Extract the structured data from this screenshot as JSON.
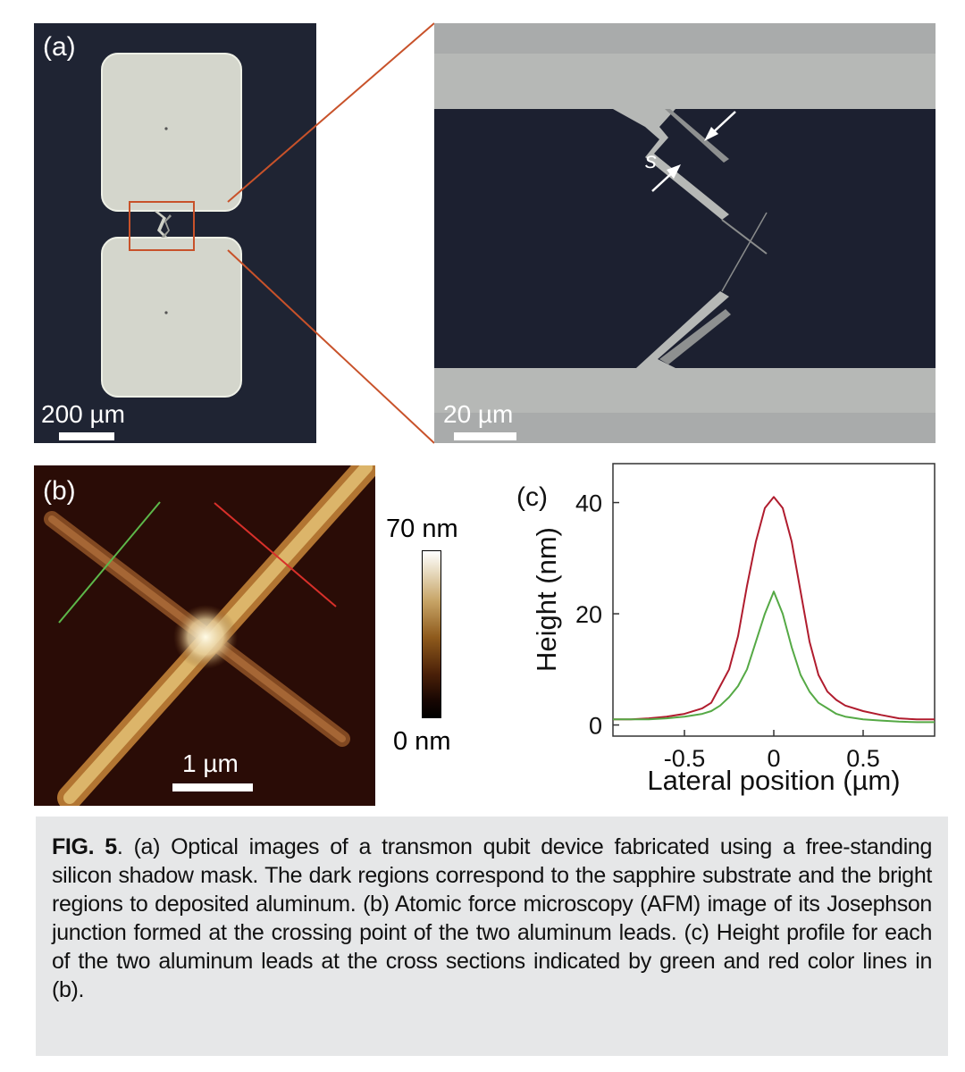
{
  "panel_a": {
    "label": "(a)",
    "left_scale": "200 µm",
    "right_scale": "20 µm",
    "gap_label": "s"
  },
  "panel_b": {
    "label": "(b)",
    "scale": "1 µm",
    "colorbar_max": "70 nm",
    "colorbar_min": "0 nm"
  },
  "chart_data": {
    "type": "line",
    "label": "(c)",
    "xlabel": "Lateral position (µm)",
    "ylabel": "Height (nm)",
    "xlim": [
      -0.9,
      0.9
    ],
    "ylim": [
      -2,
      47
    ],
    "x_ticks": [
      "-0.5",
      "0",
      "0.5"
    ],
    "x_tick_values": [
      -0.5,
      0,
      0.5
    ],
    "y_ticks": [
      "0",
      "20",
      "40"
    ],
    "y_tick_values": [
      0,
      20,
      40
    ],
    "x": [
      -0.9,
      -0.8,
      -0.7,
      -0.6,
      -0.5,
      -0.4,
      -0.35,
      -0.3,
      -0.25,
      -0.2,
      -0.15,
      -0.1,
      -0.05,
      0,
      0.05,
      0.1,
      0.15,
      0.2,
      0.25,
      0.3,
      0.35,
      0.4,
      0.5,
      0.6,
      0.7,
      0.8,
      0.9
    ],
    "series": [
      {
        "color": "#b01c2e",
        "values": [
          1,
          1,
          1.2,
          1.5,
          2,
          3,
          4,
          7,
          10,
          16,
          25,
          33,
          39,
          41,
          39,
          33,
          24,
          15,
          9,
          6,
          4.5,
          3.5,
          2.5,
          1.8,
          1.2,
          1,
          1
        ]
      },
      {
        "color": "#55a945",
        "values": [
          1,
          1,
          1,
          1.2,
          1.5,
          2,
          2.5,
          3.5,
          5,
          7,
          10,
          15,
          20,
          24,
          20,
          14,
          9,
          6,
          4,
          3,
          2,
          1.5,
          1,
          0.8,
          0.6,
          0.5,
          0.5
        ]
      }
    ]
  },
  "caption": {
    "fig": "FIG. 5",
    "text": ". (a) Optical images of a transmon qubit device fabricated using a free-standing silicon shadow mask. The dark regions correspond to the sapphire substrate and the bright regions to deposited aluminum. (b) Atomic force microscopy (AFM) image of its Josephson junction formed at the crossing point of the two aluminum leads. (c) Height profile for each of the two aluminum leads at the cross sections indicated by green and red color lines in (b)."
  }
}
